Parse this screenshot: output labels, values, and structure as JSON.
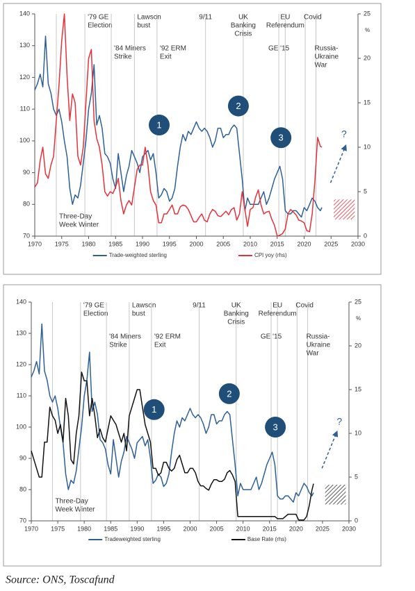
{
  "chart_data": [
    {
      "type": "line",
      "x": [
        1970,
        1970.5,
        1971,
        1971.5,
        1972,
        1972.5,
        1973,
        1973.5,
        1974,
        1974.5,
        1975,
        1975.5,
        1976,
        1976.5,
        1977,
        1977.5,
        1978,
        1978.5,
        1979,
        1979.5,
        1980,
        1980.5,
        1981,
        1981.5,
        1982,
        1982.5,
        1983,
        1983.5,
        1984,
        1984.5,
        1985,
        1985.5,
        1986,
        1986.5,
        1987,
        1987.5,
        1988,
        1988.5,
        1989,
        1989.5,
        1990,
        1990.5,
        1991,
        1991.5,
        1992,
        1992.5,
        1993,
        1993.5,
        1994,
        1994.5,
        1995,
        1995.5,
        1996,
        1996.5,
        1997,
        1997.5,
        1998,
        1998.5,
        1999,
        1999.5,
        2000,
        2000.5,
        2001,
        2001.5,
        2002,
        2002.5,
        2003,
        2003.5,
        2004,
        2004.5,
        2005,
        2005.5,
        2006,
        2006.5,
        2007,
        2007.5,
        2008,
        2008.5,
        2009,
        2009.5,
        2010,
        2010.5,
        2011,
        2011.5,
        2012,
        2012.5,
        2013,
        2013.5,
        2014,
        2014.5,
        2015,
        2015.5,
        2016,
        2016.5,
        2017,
        2017.5,
        2018,
        2018.5,
        2019,
        2019.5,
        2020,
        2020.5,
        2021,
        2021.5,
        2022,
        2022.5,
        2023,
        2023.3
      ],
      "series": [
        {
          "name": "Trade-weighted sterling",
          "color": "#2e6096",
          "values": [
            116,
            118,
            121,
            117,
            133,
            118,
            115,
            110,
            108,
            110,
            106,
            100,
            95,
            85,
            80,
            83,
            82,
            86,
            93,
            100,
            110,
            115,
            124,
            105,
            108,
            104,
            96,
            95,
            93,
            88,
            85,
            96,
            90,
            84,
            89,
            92,
            97,
            95,
            93,
            90,
            95,
            96,
            97,
            94,
            96,
            90,
            82,
            83,
            85,
            84,
            81,
            82,
            85,
            92,
            98,
            102,
            100,
            103,
            102,
            104,
            106,
            104,
            103,
            104,
            103,
            101,
            98,
            100,
            104,
            104,
            101,
            102,
            102,
            104,
            105,
            104,
            96,
            88,
            78,
            82,
            80,
            80,
            80,
            80,
            82,
            84,
            80,
            82,
            85,
            88,
            90,
            92,
            88,
            78,
            77,
            77,
            78,
            78,
            77,
            76,
            79,
            78,
            80,
            82,
            81,
            79,
            78,
            79
          ]
        },
        {
          "name": "CPI yoy (rhs)",
          "color": "#e8303a",
          "axis": "y2",
          "values": [
            5.5,
            6,
            8.5,
            10,
            7,
            6.5,
            8,
            9,
            13,
            17,
            22,
            25,
            18,
            13,
            16,
            15,
            9,
            8,
            10,
            15,
            20,
            21,
            13,
            11,
            10,
            8,
            5,
            4.5,
            5,
            4.8,
            5.5,
            6.5,
            4,
            2.5,
            3.5,
            4,
            3.5,
            5.5,
            7.5,
            8,
            8,
            10,
            8,
            5,
            4,
            3.5,
            1.5,
            1.5,
            2.5,
            2.5,
            3,
            3.5,
            2.5,
            2.5,
            3.3,
            3.5,
            3.4,
            3,
            2.3,
            1.6,
            1.6,
            2.1,
            2.5,
            1.8,
            1.6,
            2.5,
            3,
            2.8,
            2.3,
            2.2,
            2.5,
            2.8,
            2.4,
            3,
            3.2,
            1.8,
            2.5,
            5,
            3,
            1.1,
            3,
            3.2,
            4.4,
            5.2,
            3.5,
            2.5,
            2.7,
            2.8,
            1.9,
            1.2,
            0,
            0.1,
            0.3,
            0.8,
            2.5,
            3,
            2.7,
            2.4,
            1.8,
            1.7,
            1.5,
            0.6,
            0.5,
            2.5,
            6.2,
            11.1,
            10.1,
            10
          ]
        }
      ],
      "xlim": [
        1970,
        2030
      ],
      "xticks": [
        1970,
        1975,
        1980,
        1985,
        1990,
        1995,
        2000,
        2005,
        2010,
        2015,
        2020,
        2025,
        2030
      ],
      "ylim": [
        70,
        140
      ],
      "yticks": [
        70,
        80,
        90,
        100,
        110,
        120,
        130,
        140
      ],
      "y2lim": [
        0,
        25
      ],
      "y2ticks": [
        0,
        5,
        10,
        15,
        20,
        25
      ],
      "y2label": "%",
      "annotations": [
        {
          "text": [
            "Three-Day",
            "Week Winter"
          ],
          "x": 1974
        },
        {
          "text": [
            "'79 GE",
            "Election"
          ],
          "x": 1979.3
        },
        {
          "text": [
            "'84 Miners",
            "Strike"
          ],
          "x": 1984.2
        },
        {
          "text": [
            "Lawson",
            "bust"
          ],
          "x": 1988.5
        },
        {
          "text": [
            "'92 ERM",
            "Exit"
          ],
          "x": 1992.7
        },
        {
          "text": [
            "9/11"
          ],
          "x": 2001.7
        },
        {
          "text": [
            "UK",
            "Banking",
            "Crisis"
          ],
          "x": 2008.7
        },
        {
          "text": [
            "GE '15"
          ],
          "x": 2015.3
        },
        {
          "text": [
            "EU",
            "Referendum"
          ],
          "x": 2016.5
        },
        {
          "text": [
            "Covid"
          ],
          "x": 2020.2
        },
        {
          "text": [
            "Russia-",
            "Ukraine",
            "War"
          ],
          "x": 2022.2
        }
      ],
      "markers": [
        {
          "label": "1",
          "x": 1993.1,
          "y": 105
        },
        {
          "label": "2",
          "x": 2007.8,
          "y": 111
        },
        {
          "label": "3",
          "x": 2015.7,
          "y": 101
        }
      ],
      "outlook": {
        "label": "?",
        "x": 2027.4,
        "y": 102
      }
    },
    {
      "type": "line",
      "x": [
        1970,
        1970.5,
        1971,
        1971.5,
        1972,
        1972.5,
        1973,
        1973.5,
        1974,
        1974.5,
        1975,
        1975.5,
        1976,
        1976.5,
        1977,
        1977.5,
        1978,
        1978.5,
        1979,
        1979.5,
        1980,
        1980.5,
        1981,
        1981.5,
        1982,
        1982.5,
        1983,
        1983.5,
        1984,
        1984.5,
        1985,
        1985.5,
        1986,
        1986.5,
        1987,
        1987.5,
        1988,
        1988.5,
        1989,
        1989.5,
        1990,
        1990.5,
        1991,
        1991.5,
        1992,
        1992.5,
        1993,
        1993.5,
        1994,
        1994.5,
        1995,
        1995.5,
        1996,
        1996.5,
        1997,
        1997.5,
        1998,
        1998.5,
        1999,
        1999.5,
        2000,
        2000.5,
        2001,
        2001.5,
        2002,
        2002.5,
        2003,
        2003.5,
        2004,
        2004.5,
        2005,
        2005.5,
        2006,
        2006.5,
        2007,
        2007.5,
        2008,
        2008.5,
        2009,
        2009.5,
        2010,
        2010.5,
        2011,
        2011.5,
        2012,
        2012.5,
        2013,
        2013.5,
        2014,
        2014.5,
        2015,
        2015.5,
        2016,
        2016.5,
        2017,
        2017.5,
        2018,
        2018.5,
        2019,
        2019.5,
        2020,
        2020.5,
        2021,
        2021.5,
        2022,
        2022.5,
        2023,
        2023.3
      ],
      "series": [
        {
          "name": "Tradeweighted sterling",
          "color": "#2e6096",
          "values": [
            116,
            118,
            121,
            117,
            133,
            118,
            115,
            110,
            108,
            110,
            106,
            100,
            95,
            85,
            80,
            83,
            82,
            86,
            93,
            100,
            110,
            115,
            124,
            105,
            108,
            104,
            96,
            95,
            93,
            88,
            85,
            96,
            90,
            84,
            89,
            92,
            97,
            95,
            93,
            90,
            95,
            96,
            97,
            94,
            96,
            90,
            82,
            83,
            85,
            84,
            81,
            82,
            85,
            92,
            98,
            102,
            100,
            103,
            102,
            104,
            106,
            104,
            103,
            104,
            103,
            101,
            98,
            100,
            104,
            104,
            101,
            102,
            102,
            104,
            105,
            104,
            96,
            88,
            78,
            82,
            80,
            80,
            80,
            80,
            82,
            84,
            80,
            82,
            85,
            88,
            90,
            92,
            88,
            78,
            77,
            77,
            78,
            78,
            77,
            76,
            79,
            78,
            80,
            82,
            81,
            79,
            78,
            79
          ]
        },
        {
          "name": "Base Rate (rhs)",
          "color": "#111111",
          "axis": "y2",
          "values": [
            8,
            7,
            6,
            5,
            5,
            9,
            9,
            13,
            12,
            11.5,
            10,
            11,
            9,
            14,
            12,
            7,
            6.5,
            10,
            12,
            17,
            16,
            16,
            12,
            14,
            12,
            9.5,
            10.5,
            9.5,
            9,
            10.5,
            12,
            11.5,
            11,
            10,
            9,
            10,
            8,
            12,
            13,
            14,
            15,
            15,
            13,
            11,
            10,
            9,
            6,
            6,
            5.2,
            5.5,
            6.7,
            6.7,
            6,
            5.7,
            6,
            7,
            7.5,
            6.5,
            5.5,
            5.5,
            6,
            6,
            5.5,
            4.5,
            4,
            4,
            3.7,
            3.5,
            4.2,
            4.7,
            4.7,
            4.5,
            4.5,
            4.75,
            5.5,
            5.75,
            5.25,
            4.5,
            0.5,
            0.5,
            0.5,
            0.5,
            0.5,
            0.5,
            0.5,
            0.5,
            0.5,
            0.5,
            0.5,
            0.5,
            0.5,
            0.5,
            0.5,
            0.25,
            0.25,
            0.25,
            0.5,
            0.75,
            0.75,
            0.75,
            0.75,
            0.1,
            0.1,
            0.1,
            0.5,
            1.75,
            3.5,
            4.25
          ]
        }
      ],
      "xlim": [
        1970,
        2030
      ],
      "xticks": [
        1970,
        1975,
        1980,
        1985,
        1990,
        1995,
        2000,
        2005,
        2010,
        2015,
        2020,
        2025,
        2030
      ],
      "ylim": [
        70,
        140
      ],
      "yticks": [
        70,
        80,
        90,
        100,
        110,
        120,
        130,
        140
      ],
      "y2lim": [
        0,
        25
      ],
      "y2ticks": [
        0,
        5,
        10,
        15,
        20,
        25
      ],
      "y2label": "%",
      "annotations": [
        {
          "text": [
            "Three-Day",
            "Week Winter"
          ],
          "x": 1974
        },
        {
          "text": [
            "'79 GE",
            "Election"
          ],
          "x": 1979.3
        },
        {
          "text": [
            "'84 Miners",
            "Strike"
          ],
          "x": 1984.2
        },
        {
          "text": [
            "Lawson",
            "bust"
          ],
          "x": 1988.5
        },
        {
          "text": [
            "'92 ERM",
            "Exit"
          ],
          "x": 1992.7
        },
        {
          "text": [
            "9/11"
          ],
          "x": 2001.7
        },
        {
          "text": [
            "UK",
            "Banking",
            "Crisis"
          ],
          "x": 2008.7
        },
        {
          "text": [
            "GE '15"
          ],
          "x": 2015.3
        },
        {
          "text": [
            "EU",
            "Referendum"
          ],
          "x": 2016.5
        },
        {
          "text": [
            "Covid"
          ],
          "x": 2020.2
        },
        {
          "text": [
            "Russia-",
            "Ukraine",
            "War"
          ],
          "x": 2022.2
        }
      ],
      "markers": [
        {
          "label": "1",
          "x": 1993.2,
          "y": 105.6
        },
        {
          "label": "2",
          "x": 2007.4,
          "y": 110.7
        },
        {
          "label": "3",
          "x": 2016.1,
          "y": 100
        }
      ],
      "outlook": {
        "label": "?",
        "x": 2028.2,
        "y": 101.6
      }
    }
  ],
  "source": "Source: ONS, Toscafund"
}
